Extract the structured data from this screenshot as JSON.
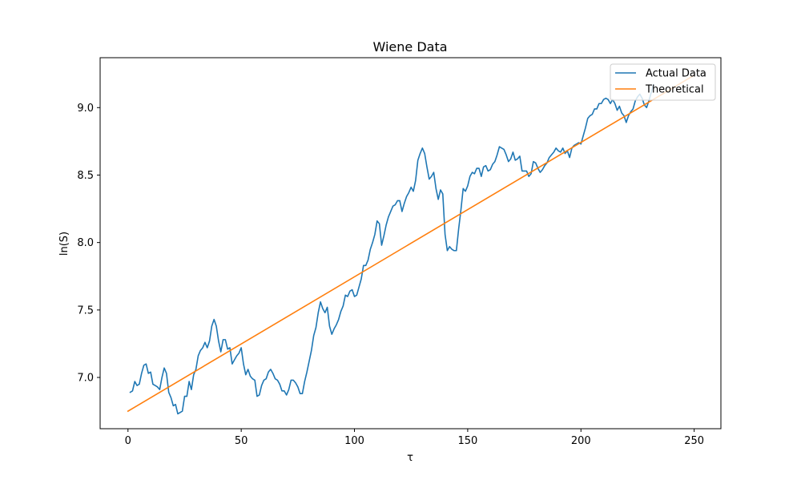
{
  "chart_data": {
    "type": "line",
    "title": "Wiene Data",
    "xlabel": "τ",
    "ylabel": "ln(S)",
    "xlim": [
      -12.3,
      261.8
    ],
    "ylim": [
      6.62,
      9.37
    ],
    "xticks": [
      0,
      50,
      100,
      150,
      200,
      250
    ],
    "xtick_labels": [
      "0",
      "50",
      "100",
      "150",
      "200",
      "250"
    ],
    "yticks": [
      7.0,
      7.5,
      8.0,
      8.5,
      9.0
    ],
    "ytick_labels": [
      "7.0",
      "7.5",
      "8.0",
      "8.5",
      "9.0"
    ],
    "grid": false,
    "legend_position": "top-right",
    "series": [
      {
        "name": "Actual Data",
        "color": "#1f77b4",
        "points": [
          [
            1,
            6.89
          ],
          [
            2,
            6.9
          ],
          [
            3,
            6.97
          ],
          [
            4,
            6.94
          ],
          [
            5,
            6.95
          ],
          [
            6,
            7.03
          ],
          [
            7,
            7.09
          ],
          [
            8,
            7.1
          ],
          [
            9,
            7.03
          ],
          [
            10,
            7.04
          ],
          [
            11,
            6.95
          ],
          [
            12,
            6.94
          ],
          [
            13,
            6.93
          ],
          [
            14,
            6.91
          ],
          [
            15,
            7.0
          ],
          [
            16,
            7.07
          ],
          [
            17,
            7.03
          ],
          [
            18,
            6.89
          ],
          [
            19,
            6.85
          ],
          [
            20,
            6.79
          ],
          [
            21,
            6.8
          ],
          [
            22,
            6.73
          ],
          [
            23,
            6.74
          ],
          [
            24,
            6.75
          ],
          [
            25,
            6.86
          ],
          [
            26,
            6.86
          ],
          [
            27,
            6.97
          ],
          [
            28,
            6.91
          ],
          [
            29,
            7.02
          ],
          [
            30,
            7.06
          ],
          [
            31,
            7.16
          ],
          [
            32,
            7.2
          ],
          [
            33,
            7.22
          ],
          [
            34,
            7.26
          ],
          [
            35,
            7.22
          ],
          [
            36,
            7.27
          ],
          [
            37,
            7.38
          ],
          [
            38,
            7.43
          ],
          [
            39,
            7.38
          ],
          [
            40,
            7.27
          ],
          [
            41,
            7.19
          ],
          [
            42,
            7.28
          ],
          [
            43,
            7.28
          ],
          [
            44,
            7.21
          ],
          [
            45,
            7.22
          ],
          [
            46,
            7.1
          ],
          [
            47,
            7.13
          ],
          [
            48,
            7.16
          ],
          [
            49,
            7.18
          ],
          [
            50,
            7.22
          ],
          [
            51,
            7.1
          ],
          [
            52,
            7.02
          ],
          [
            53,
            7.06
          ],
          [
            54,
            7.01
          ],
          [
            55,
            6.99
          ],
          [
            56,
            6.98
          ],
          [
            57,
            6.86
          ],
          [
            58,
            6.87
          ],
          [
            59,
            6.94
          ],
          [
            60,
            6.98
          ],
          [
            61,
            6.99
          ],
          [
            62,
            7.04
          ],
          [
            63,
            7.06
          ],
          [
            64,
            7.03
          ],
          [
            65,
            6.99
          ],
          [
            66,
            6.98
          ],
          [
            67,
            6.95
          ],
          [
            68,
            6.9
          ],
          [
            69,
            6.9
          ],
          [
            70,
            6.87
          ],
          [
            71,
            6.91
          ],
          [
            72,
            6.98
          ],
          [
            73,
            6.98
          ],
          [
            74,
            6.96
          ],
          [
            75,
            6.93
          ],
          [
            76,
            6.88
          ],
          [
            77,
            6.88
          ],
          [
            78,
            6.97
          ],
          [
            79,
            7.04
          ],
          [
            80,
            7.12
          ],
          [
            81,
            7.2
          ],
          [
            82,
            7.31
          ],
          [
            83,
            7.37
          ],
          [
            84,
            7.48
          ],
          [
            85,
            7.56
          ],
          [
            86,
            7.51
          ],
          [
            87,
            7.48
          ],
          [
            88,
            7.52
          ],
          [
            89,
            7.38
          ],
          [
            90,
            7.32
          ],
          [
            91,
            7.36
          ],
          [
            92,
            7.39
          ],
          [
            93,
            7.43
          ],
          [
            94,
            7.49
          ],
          [
            95,
            7.53
          ],
          [
            96,
            7.61
          ],
          [
            97,
            7.6
          ],
          [
            98,
            7.64
          ],
          [
            99,
            7.65
          ],
          [
            100,
            7.6
          ],
          [
            101,
            7.61
          ],
          [
            102,
            7.67
          ],
          [
            103,
            7.73
          ],
          [
            104,
            7.83
          ],
          [
            105,
            7.83
          ],
          [
            106,
            7.87
          ],
          [
            107,
            7.95
          ],
          [
            108,
            8.0
          ],
          [
            109,
            8.06
          ],
          [
            110,
            8.16
          ],
          [
            111,
            8.14
          ],
          [
            112,
            7.98
          ],
          [
            113,
            8.05
          ],
          [
            114,
            8.13
          ],
          [
            115,
            8.19
          ],
          [
            116,
            8.23
          ],
          [
            117,
            8.27
          ],
          [
            118,
            8.28
          ],
          [
            119,
            8.31
          ],
          [
            120,
            8.31
          ],
          [
            121,
            8.23
          ],
          [
            122,
            8.29
          ],
          [
            123,
            8.34
          ],
          [
            124,
            8.37
          ],
          [
            125,
            8.41
          ],
          [
            126,
            8.38
          ],
          [
            127,
            8.46
          ],
          [
            128,
            8.61
          ],
          [
            129,
            8.66
          ],
          [
            130,
            8.7
          ],
          [
            131,
            8.66
          ],
          [
            132,
            8.56
          ],
          [
            133,
            8.47
          ],
          [
            134,
            8.49
          ],
          [
            135,
            8.52
          ],
          [
            136,
            8.4
          ],
          [
            137,
            8.32
          ],
          [
            138,
            8.39
          ],
          [
            139,
            8.36
          ],
          [
            140,
            8.06
          ],
          [
            141,
            7.94
          ],
          [
            142,
            7.97
          ],
          [
            143,
            7.95
          ],
          [
            144,
            7.94
          ],
          [
            145,
            7.94
          ],
          [
            146,
            8.1
          ],
          [
            147,
            8.24
          ],
          [
            148,
            8.4
          ],
          [
            149,
            8.38
          ],
          [
            150,
            8.42
          ],
          [
            151,
            8.49
          ],
          [
            152,
            8.52
          ],
          [
            153,
            8.51
          ],
          [
            154,
            8.55
          ],
          [
            155,
            8.55
          ],
          [
            156,
            8.49
          ],
          [
            157,
            8.56
          ],
          [
            158,
            8.57
          ],
          [
            159,
            8.53
          ],
          [
            160,
            8.54
          ],
          [
            161,
            8.58
          ],
          [
            162,
            8.6
          ],
          [
            163,
            8.65
          ],
          [
            164,
            8.71
          ],
          [
            165,
            8.7
          ],
          [
            166,
            8.69
          ],
          [
            167,
            8.65
          ],
          [
            168,
            8.6
          ],
          [
            169,
            8.62
          ],
          [
            170,
            8.67
          ],
          [
            171,
            8.61
          ],
          [
            172,
            8.62
          ],
          [
            173,
            8.64
          ],
          [
            174,
            8.53
          ],
          [
            175,
            8.53
          ],
          [
            176,
            8.53
          ],
          [
            177,
            8.49
          ],
          [
            178,
            8.51
          ],
          [
            179,
            8.6
          ],
          [
            180,
            8.59
          ],
          [
            181,
            8.55
          ],
          [
            182,
            8.52
          ],
          [
            183,
            8.54
          ],
          [
            184,
            8.57
          ],
          [
            185,
            8.59
          ],
          [
            186,
            8.63
          ],
          [
            187,
            8.65
          ],
          [
            188,
            8.67
          ],
          [
            189,
            8.7
          ],
          [
            190,
            8.68
          ],
          [
            191,
            8.67
          ],
          [
            192,
            8.7
          ],
          [
            193,
            8.66
          ],
          [
            194,
            8.68
          ],
          [
            195,
            8.63
          ],
          [
            196,
            8.7
          ],
          [
            197,
            8.72
          ],
          [
            198,
            8.73
          ],
          [
            199,
            8.74
          ],
          [
            200,
            8.73
          ],
          [
            201,
            8.79
          ],
          [
            202,
            8.85
          ],
          [
            203,
            8.92
          ],
          [
            204,
            8.94
          ],
          [
            205,
            8.95
          ],
          [
            206,
            8.99
          ],
          [
            207,
            8.99
          ],
          [
            208,
            9.03
          ],
          [
            209,
            9.03
          ],
          [
            210,
            9.06
          ],
          [
            211,
            9.07
          ],
          [
            212,
            9.06
          ],
          [
            213,
            9.03
          ],
          [
            214,
            9.06
          ],
          [
            215,
            9.03
          ],
          [
            216,
            8.98
          ],
          [
            217,
            9.01
          ],
          [
            218,
            8.96
          ],
          [
            219,
            8.94
          ],
          [
            220,
            8.89
          ],
          [
            221,
            8.94
          ],
          [
            222,
            8.97
          ],
          [
            223,
            8.99
          ],
          [
            224,
            9.05
          ],
          [
            225,
            9.08
          ],
          [
            226,
            9.1
          ],
          [
            227,
            9.07
          ],
          [
            228,
            9.02
          ],
          [
            229,
            9.0
          ],
          [
            230,
            9.05
          ],
          [
            231,
            9.11
          ],
          [
            232,
            9.17
          ]
        ]
      },
      {
        "name": "Theoretical",
        "color": "#ff7f0e",
        "points": [
          [
            0,
            6.75
          ],
          [
            250,
            9.24
          ]
        ]
      }
    ]
  }
}
